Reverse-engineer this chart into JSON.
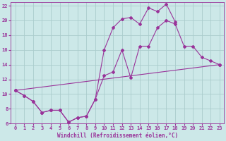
{
  "background_color": "#cce8e8",
  "grid_color": "#aacccc",
  "line_color": "#993399",
  "xlabel": "Windchill (Refroidissement éolien,°C)",
  "xlim": [
    -0.5,
    23.5
  ],
  "ylim": [
    6,
    22.5
  ],
  "yticks": [
    6,
    8,
    10,
    12,
    14,
    16,
    18,
    20,
    22
  ],
  "xticks": [
    0,
    1,
    2,
    3,
    4,
    5,
    6,
    7,
    8,
    9,
    10,
    11,
    12,
    13,
    14,
    15,
    16,
    17,
    18,
    19,
    20,
    21,
    22,
    23
  ],
  "line1_x": [
    0,
    1,
    2,
    3,
    4,
    5,
    6,
    7,
    8,
    9,
    10,
    11,
    12,
    13,
    14,
    15,
    16,
    17,
    18
  ],
  "line1_y": [
    10.5,
    9.8,
    9.0,
    7.5,
    7.8,
    7.8,
    6.2,
    6.8,
    7.0,
    9.3,
    16.0,
    19.0,
    20.2,
    20.4,
    19.5,
    21.7,
    21.2,
    22.2,
    19.8
  ],
  "line2_x": [
    0,
    1,
    2,
    3,
    4,
    5,
    6,
    7,
    8,
    9,
    10,
    11,
    12,
    13,
    14,
    15,
    16,
    17,
    18,
    19,
    20,
    21,
    22,
    23
  ],
  "line2_y": [
    10.5,
    9.8,
    9.0,
    7.5,
    7.8,
    7.8,
    6.2,
    6.8,
    7.0,
    9.3,
    12.5,
    13.0,
    16.0,
    12.2,
    16.5,
    16.5,
    19.0,
    20.0,
    19.5,
    16.5,
    16.5,
    15.0,
    14.5,
    14.0
  ],
  "line3_x": [
    0,
    23
  ],
  "line3_y": [
    10.5,
    14.0
  ]
}
